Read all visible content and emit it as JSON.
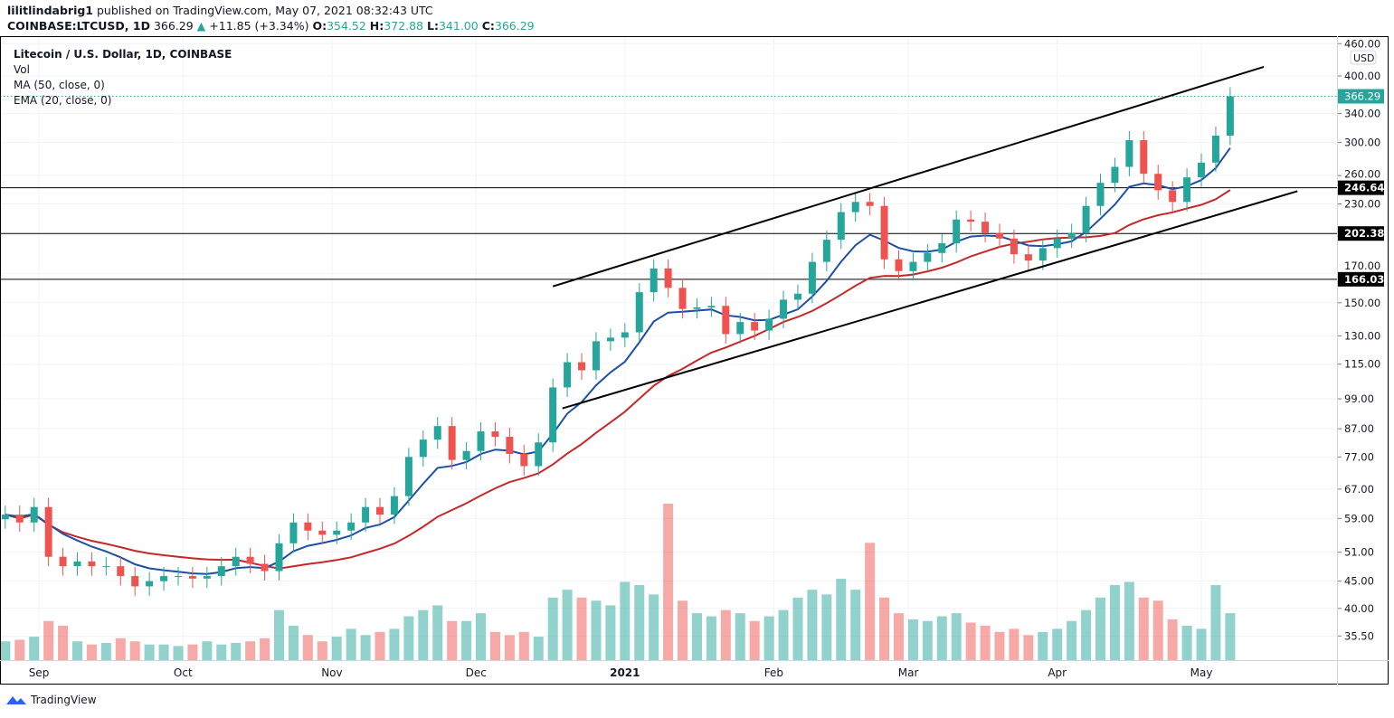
{
  "header": {
    "publisher": "lilitlindabrig1",
    "published_text": "published on TradingView.com, May 07, 2021 08:32:43 UTC",
    "symbol": "COINBASE:LTCUSD, 1D",
    "last": "366.29",
    "change": "+11.85 (+3.34%)",
    "o_label": "O:",
    "o": "354.52",
    "h_label": "H:",
    "h": "372.88",
    "l_label": "L:",
    "l": "341.00",
    "c_label": "C:",
    "c": "366.29",
    "direction_icon": "triangle-up-icon"
  },
  "legend": {
    "title": "Litecoin / U.S. Dollar, 1D, COINBASE",
    "vol": "Vol",
    "ma": "MA (50, close, 0)",
    "ema": "EMA (20, close, 0)"
  },
  "footer": {
    "brand": "TradingView",
    "icon": "tradingview-logo-icon"
  },
  "colors": {
    "up": "#26a69a",
    "down": "#ef5350",
    "ma": "#c62828",
    "ema": "#1e4fa8",
    "lines": "#000000",
    "last_price": "#26a69a"
  },
  "chart_data": {
    "type": "candlestick",
    "scale": "log",
    "currency": "USD",
    "grid": true,
    "ylim": [
      33,
      460
    ],
    "y_ticks": [
      "460.00",
      "400.00",
      "340.00",
      "300.00",
      "260.00",
      "230.00",
      "170.00",
      "150.00",
      "130.00",
      "115.00",
      "99.00",
      "87.00",
      "77.00",
      "67.00",
      "59.00",
      "51.00",
      "45.00",
      "40.00",
      "35.50"
    ],
    "x_ticks": [
      {
        "label": "Sep",
        "date": "2020-09-01"
      },
      {
        "label": "Oct",
        "date": "2020-10-01"
      },
      {
        "label": "Nov",
        "date": "2020-11-01"
      },
      {
        "label": "Dec",
        "date": "2020-12-01"
      },
      {
        "label": "2021",
        "date": "2021-01-01",
        "bold": true
      },
      {
        "label": "Feb",
        "date": "2021-02-01"
      },
      {
        "label": "Mar",
        "date": "2021-03-01"
      },
      {
        "label": "Apr",
        "date": "2021-04-01"
      },
      {
        "label": "May",
        "date": "2021-05-01"
      }
    ],
    "last_price": "366.29",
    "horizontal_levels": [
      "246.64",
      "202.38",
      "166.03"
    ],
    "trendlines": [
      {
        "from": {
          "date": "2020-12-17",
          "price": 161
        },
        "to": {
          "date": "2021-05-14",
          "price": 416
        }
      },
      {
        "from": {
          "date": "2020-12-19",
          "price": 95
        },
        "to": {
          "date": "2021-05-21",
          "price": 243
        }
      }
    ],
    "indicators": [
      {
        "name": "MA (50, close, 0)",
        "color": "#c62828"
      },
      {
        "name": "EMA (20, close, 0)",
        "color": "#1e4fa8"
      }
    ],
    "dates": [
      "2020-08-25",
      "2020-08-28",
      "2020-08-31",
      "2020-09-03",
      "2020-09-06",
      "2020-09-09",
      "2020-09-12",
      "2020-09-15",
      "2020-09-18",
      "2020-09-21",
      "2020-09-24",
      "2020-09-27",
      "2020-09-30",
      "2020-10-03",
      "2020-10-06",
      "2020-10-09",
      "2020-10-12",
      "2020-10-15",
      "2020-10-18",
      "2020-10-21",
      "2020-10-24",
      "2020-10-27",
      "2020-10-30",
      "2020-11-02",
      "2020-11-05",
      "2020-11-08",
      "2020-11-11",
      "2020-11-14",
      "2020-11-17",
      "2020-11-20",
      "2020-11-23",
      "2020-11-26",
      "2020-11-29",
      "2020-12-02",
      "2020-12-05",
      "2020-12-08",
      "2020-12-11",
      "2020-12-14",
      "2020-12-17",
      "2020-12-20",
      "2020-12-23",
      "2020-12-26",
      "2020-12-29",
      "2021-01-01",
      "2021-01-04",
      "2021-01-07",
      "2021-01-10",
      "2021-01-13",
      "2021-01-16",
      "2021-01-19",
      "2021-01-22",
      "2021-01-25",
      "2021-01-28",
      "2021-01-31",
      "2021-02-03",
      "2021-02-06",
      "2021-02-09",
      "2021-02-12",
      "2021-02-15",
      "2021-02-18",
      "2021-02-21",
      "2021-02-24",
      "2021-02-27",
      "2021-03-02",
      "2021-03-05",
      "2021-03-08",
      "2021-03-11",
      "2021-03-14",
      "2021-03-17",
      "2021-03-20",
      "2021-03-23",
      "2021-03-26",
      "2021-03-29",
      "2021-04-01",
      "2021-04-04",
      "2021-04-07",
      "2021-04-10",
      "2021-04-13",
      "2021-04-16",
      "2021-04-19",
      "2021-04-22",
      "2021-04-25",
      "2021-04-28",
      "2021-05-01",
      "2021-05-04",
      "2021-05-07"
    ],
    "close": [
      60,
      58,
      62,
      50,
      48,
      49,
      48,
      48,
      46,
      44,
      45,
      46,
      46,
      45.5,
      46,
      48,
      50,
      48.5,
      47,
      53,
      58,
      56,
      55,
      56,
      58,
      62,
      60,
      65,
      77,
      83,
      88,
      76,
      79,
      86,
      84,
      78,
      74,
      82,
      104,
      116,
      112,
      127,
      129,
      132,
      157,
      174,
      160,
      146,
      147,
      148,
      131,
      138,
      133,
      140,
      152,
      156,
      179,
      197,
      222,
      232,
      228,
      181,
      172,
      179,
      186,
      194,
      215,
      213,
      203,
      198,
      185,
      180,
      190,
      198,
      203,
      228,
      252,
      270,
      303,
      262,
      244,
      232,
      258,
      275,
      309,
      366.29
    ],
    "volume_relative": [
      12,
      13,
      15,
      25,
      22,
      12,
      10,
      11,
      14,
      12,
      10,
      10,
      9,
      10,
      12,
      10,
      11,
      12,
      14,
      32,
      22,
      16,
      12,
      15,
      20,
      16,
      18,
      20,
      28,
      32,
      35,
      25,
      25,
      30,
      18,
      16,
      18,
      15,
      40,
      45,
      40,
      38,
      35,
      50,
      48,
      42,
      100,
      38,
      30,
      28,
      32,
      30,
      25,
      28,
      32,
      40,
      45,
      42,
      52,
      45,
      75,
      40,
      30,
      26,
      25,
      28,
      30,
      24,
      22,
      18,
      20,
      16,
      18,
      20,
      25,
      32,
      40,
      48,
      50,
      40,
      38,
      26,
      22,
      20,
      48,
      30
    ]
  }
}
